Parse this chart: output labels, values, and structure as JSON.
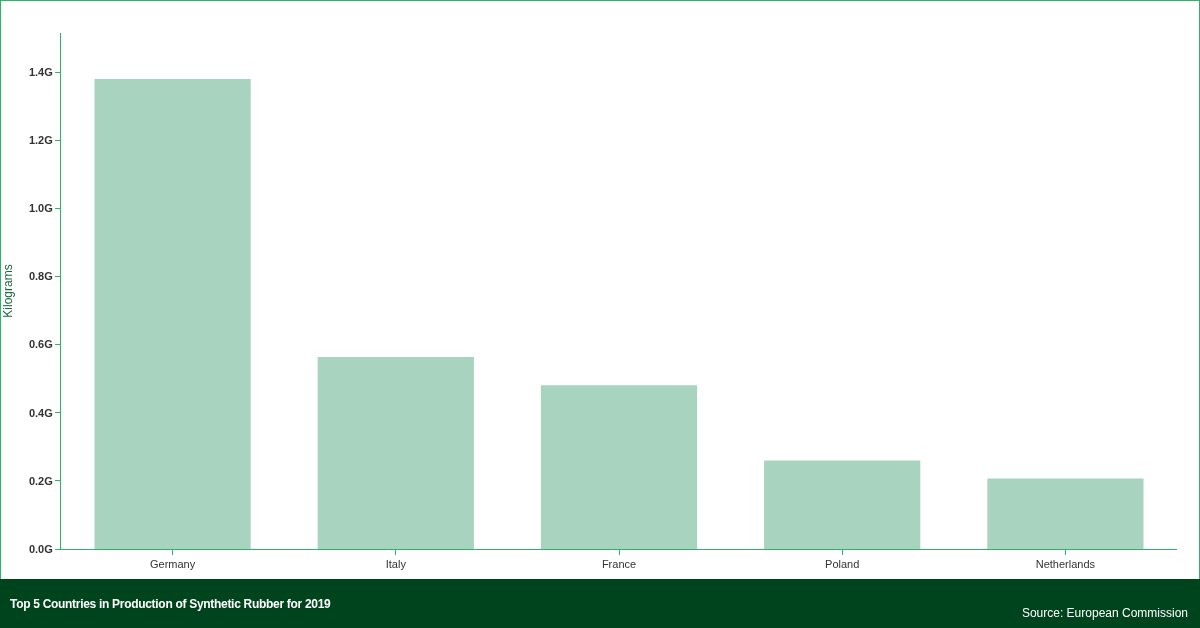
{
  "chart_data": {
    "type": "bar",
    "title": "Top 5 Countries in Production of Synthetic Rubber for 2019",
    "ylabel": "Kilograms",
    "categories": [
      "Germany",
      "Italy",
      "France",
      "Poland",
      "Netherlands"
    ],
    "values": [
      1.38,
      0.564,
      0.481,
      0.26,
      0.207
    ],
    "color": "#a8d4bf",
    "ylim": [
      0,
      1.515
    ],
    "yticks": [
      {
        "value": 0,
        "label": "0.0G"
      },
      {
        "value": 0.2,
        "label": "0.2G"
      },
      {
        "value": 0.4,
        "label": "0.4G"
      },
      {
        "value": 0.6,
        "label": "0.6G"
      },
      {
        "value": 0.8,
        "label": "0.8G"
      },
      {
        "value": 1.0,
        "label": "1.0G"
      },
      {
        "value": 1.2,
        "label": "1.2G"
      },
      {
        "value": 1.4,
        "label": "1.4G"
      }
    ],
    "grid": false,
    "annotations": [
      "Source: European Commission"
    ]
  }
}
